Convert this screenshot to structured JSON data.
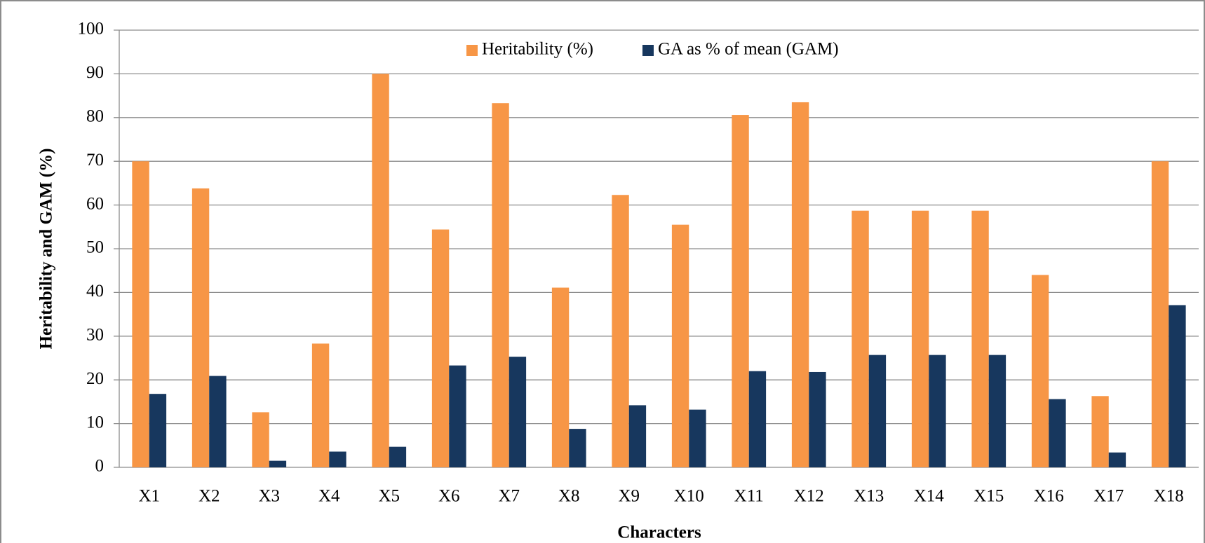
{
  "chart_data": {
    "type": "bar",
    "x_label": "Characters",
    "y_label": "Heritability and GAM (%)",
    "categories": [
      "X1",
      "X2",
      "X3",
      "X4",
      "X5",
      "X6",
      "X7",
      "X8",
      "X9",
      "X10",
      "X11",
      "X12",
      "X13",
      "X14",
      "X15",
      "X16",
      "X17",
      "X18"
    ],
    "series": [
      {
        "name": "Heritability (%)",
        "color": "#f79646",
        "values": [
          70,
          63.8,
          12.6,
          28.3,
          90,
          54.4,
          83.3,
          41.1,
          62.3,
          55.5,
          80.6,
          83.5,
          58.7,
          58.7,
          58.7,
          44,
          16.3,
          70
        ]
      },
      {
        "name": "GA as % of mean (GAM)",
        "color": "#17375e",
        "values": [
          16.8,
          20.9,
          1.5,
          3.6,
          4.7,
          23.3,
          25.3,
          8.8,
          14.2,
          13.2,
          22,
          21.8,
          25.7,
          25.7,
          25.7,
          15.6,
          3.4,
          37.1
        ]
      }
    ],
    "ylim": [
      0,
      100
    ],
    "yticks": [
      0,
      10,
      20,
      30,
      40,
      50,
      60,
      70,
      80,
      90,
      100
    ],
    "grid": true,
    "legend": "top"
  }
}
